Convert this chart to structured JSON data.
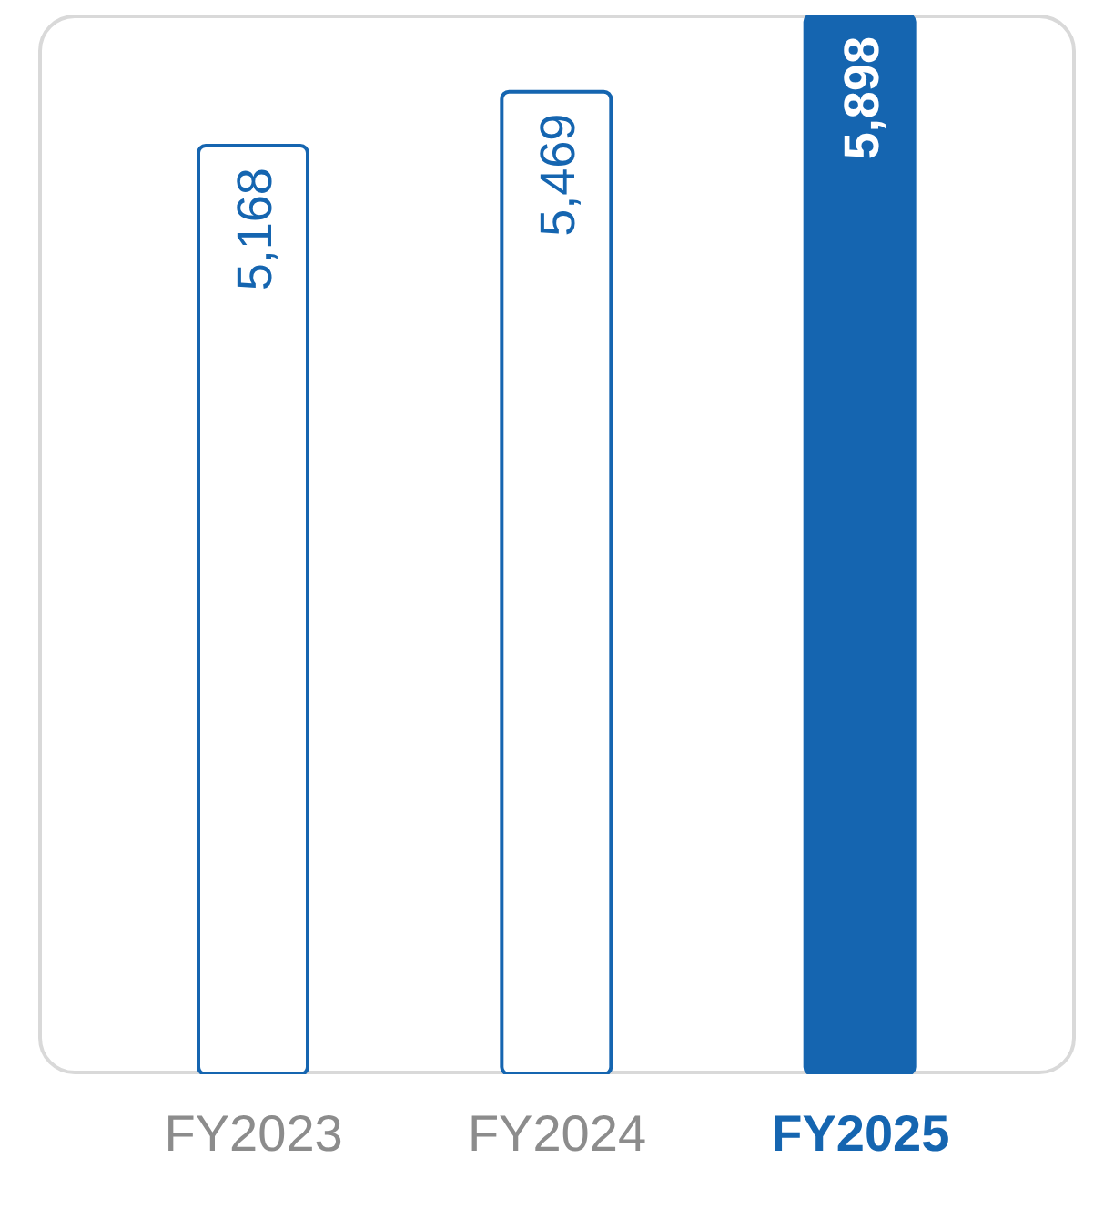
{
  "chart_data": {
    "type": "bar",
    "categories": [
      "FY2023",
      "FY2024",
      "FY2025"
    ],
    "values": [
      5168,
      5469,
      5898
    ],
    "color": "#1565b0",
    "colors": [
      "#ffffff",
      "#ffffff",
      "#1565b0"
    ],
    "value_labels": [
      "5,168",
      "5,469",
      "5,898"
    ],
    "grid": false,
    "legend": false
  }
}
